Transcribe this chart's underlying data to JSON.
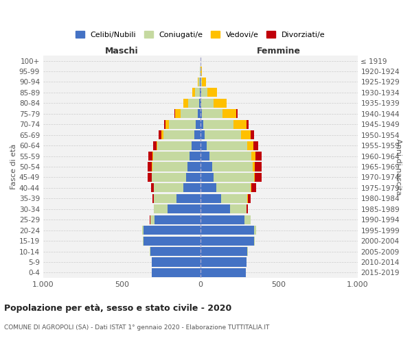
{
  "age_groups": [
    "0-4",
    "5-9",
    "10-14",
    "15-19",
    "20-24",
    "25-29",
    "30-34",
    "35-39",
    "40-44",
    "45-49",
    "50-54",
    "55-59",
    "60-64",
    "65-69",
    "70-74",
    "75-79",
    "80-84",
    "85-89",
    "90-94",
    "95-99",
    "100+"
  ],
  "birth_years": [
    "2015-2019",
    "2010-2014",
    "2005-2009",
    "2000-2004",
    "1995-1999",
    "1990-1994",
    "1985-1989",
    "1980-1984",
    "1975-1979",
    "1970-1974",
    "1965-1969",
    "1960-1964",
    "1955-1959",
    "1950-1954",
    "1945-1949",
    "1940-1944",
    "1935-1939",
    "1930-1934",
    "1925-1929",
    "1920-1924",
    "≤ 1919"
  ],
  "male": {
    "celibi": [
      310,
      310,
      320,
      360,
      360,
      290,
      210,
      150,
      110,
      90,
      80,
      70,
      55,
      40,
      30,
      15,
      8,
      4,
      2,
      1,
      0
    ],
    "coniugati": [
      1,
      1,
      2,
      5,
      10,
      30,
      85,
      145,
      185,
      220,
      225,
      230,
      220,
      195,
      170,
      110,
      70,
      30,
      8,
      2,
      0
    ],
    "vedovi": [
      0,
      0,
      0,
      0,
      0,
      0,
      0,
      0,
      1,
      1,
      2,
      3,
      5,
      12,
      20,
      35,
      30,
      18,
      5,
      1,
      0
    ],
    "divorziati": [
      0,
      0,
      0,
      0,
      0,
      1,
      3,
      10,
      18,
      25,
      30,
      28,
      22,
      18,
      12,
      5,
      2,
      0,
      0,
      0,
      0
    ]
  },
  "female": {
    "nubili": [
      290,
      295,
      300,
      340,
      340,
      280,
      190,
      130,
      100,
      85,
      75,
      60,
      42,
      28,
      18,
      10,
      6,
      4,
      2,
      1,
      0
    ],
    "coniugate": [
      1,
      1,
      2,
      5,
      15,
      40,
      105,
      170,
      220,
      255,
      260,
      265,
      255,
      230,
      195,
      130,
      80,
      40,
      10,
      2,
      0
    ],
    "vedove": [
      0,
      0,
      0,
      0,
      0,
      0,
      1,
      2,
      3,
      6,
      12,
      25,
      40,
      60,
      80,
      90,
      80,
      60,
      25,
      5,
      1
    ],
    "divorziate": [
      0,
      0,
      0,
      0,
      0,
      1,
      5,
      18,
      30,
      42,
      45,
      38,
      32,
      22,
      15,
      5,
      3,
      2,
      1,
      0,
      0
    ]
  },
  "colors": {
    "celibi": "#4472c4",
    "coniugati": "#c5d9a0",
    "vedovi": "#ffc000",
    "divorziati": "#c0000a"
  },
  "legend_labels": [
    "Celibi/Nubili",
    "Coniugati/e",
    "Vedovi/e",
    "Divorziati/e"
  ],
  "title": "Popolazione per età, sesso e stato civile - 2020",
  "subtitle": "COMUNE DI AGROPOLI (SA) - Dati ISTAT 1° gennaio 2020 - Elaborazione TUTTITALIA.IT",
  "xlabel_left": "Maschi",
  "xlabel_right": "Femmine",
  "ylabel_left": "Fasce di età",
  "ylabel_right": "Anni di nascita",
  "xlim": 1000,
  "background_color": "#ffffff",
  "plot_bg_color": "#f2f2f2",
  "grid_color": "#cccccc",
  "bar_height": 0.85
}
